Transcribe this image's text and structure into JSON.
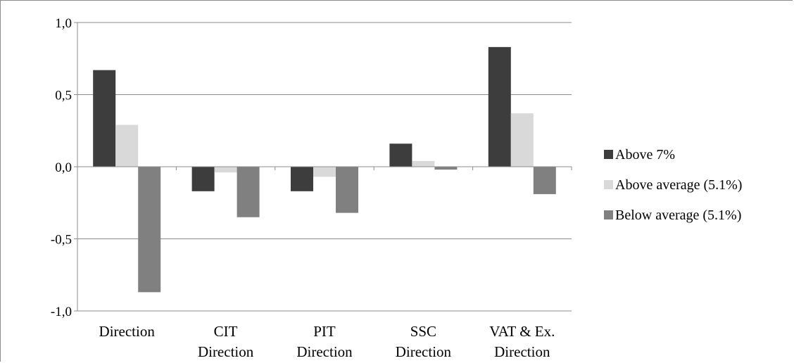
{
  "chart_data": {
    "type": "bar",
    "title": "",
    "xlabel": "",
    "ylabel": "",
    "ylim": [
      -1.0,
      1.0
    ],
    "yticks": [
      1.0,
      0.5,
      0.0,
      -0.5,
      -1.0
    ],
    "ytick_labels": [
      "1,0",
      "0,5",
      "0,0",
      "-0,5",
      "-1,0"
    ],
    "grid": true,
    "legend_position": "right",
    "categories": [
      [
        "Direction"
      ],
      [
        "CIT",
        "Direction"
      ],
      [
        "PIT",
        "Direction"
      ],
      [
        "SSC",
        "Direction"
      ],
      [
        "VAT & Ex.",
        "Direction"
      ]
    ],
    "series": [
      {
        "name": "Above 7%",
        "color": "#3d3d3d",
        "values": [
          0.67,
          -0.17,
          -0.17,
          0.16,
          0.83
        ]
      },
      {
        "name": "Above average (5.1%)",
        "color": "#d9d9d9",
        "values": [
          0.29,
          -0.04,
          -0.07,
          0.04,
          0.37
        ]
      },
      {
        "name": "Below average (5.1%)",
        "color": "#808080",
        "values": [
          -0.87,
          -0.35,
          -0.32,
          -0.02,
          -0.19
        ]
      }
    ]
  }
}
